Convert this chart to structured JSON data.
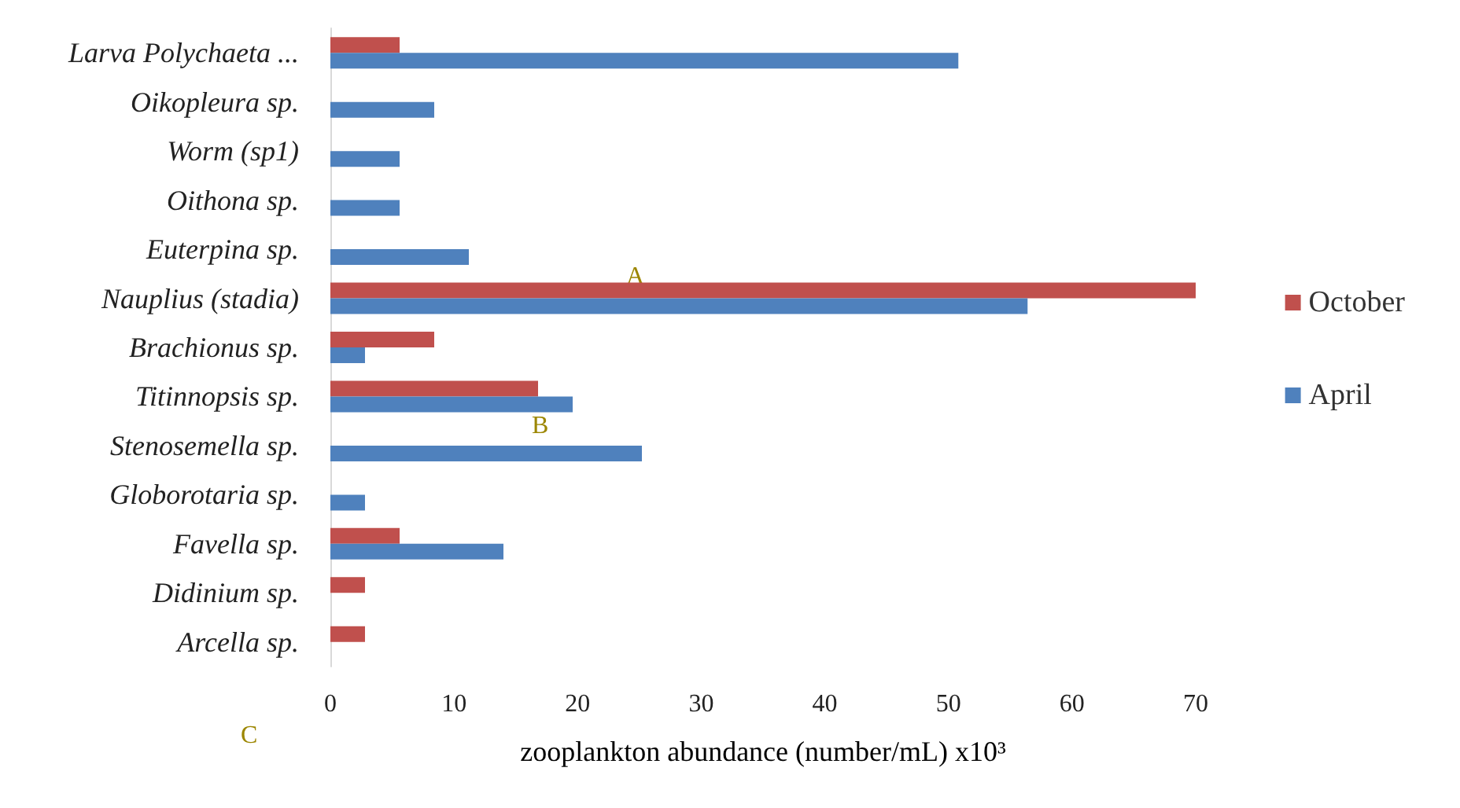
{
  "chart_data": {
    "type": "bar",
    "orientation": "horizontal",
    "xlabel": "zooplankton abundance (number/mL) x10³",
    "categories": [
      "Larva Polychaeta ...",
      "Oikopleura sp.",
      "Worm (sp1)",
      "Oithona sp.",
      "Euterpina sp.",
      "Nauplius (stadia)",
      "Brachionus sp.",
      "Titinnopsis sp.",
      "Stenosemella sp.",
      "Globorotaria sp.",
      "Favella sp.",
      "Didinium sp.",
      "Arcella sp."
    ],
    "series": [
      {
        "name": "October",
        "color": "#c0504d",
        "values": [
          5.6,
          null,
          null,
          null,
          null,
          70,
          8.4,
          16.8,
          null,
          null,
          5.6,
          2.8,
          2.8
        ]
      },
      {
        "name": "April",
        "color": "#4f81bd",
        "values": [
          50.8,
          8.4,
          5.6,
          5.6,
          11.2,
          56.4,
          2.8,
          19.6,
          25.2,
          2.8,
          14,
          null,
          null
        ]
      }
    ],
    "xlim": [
      0,
      70
    ],
    "xticks": [
      0,
      10,
      20,
      30,
      40,
      50,
      60,
      70
    ],
    "grid": false,
    "legend": "right",
    "annotations": [
      "A",
      "B",
      "C"
    ]
  }
}
